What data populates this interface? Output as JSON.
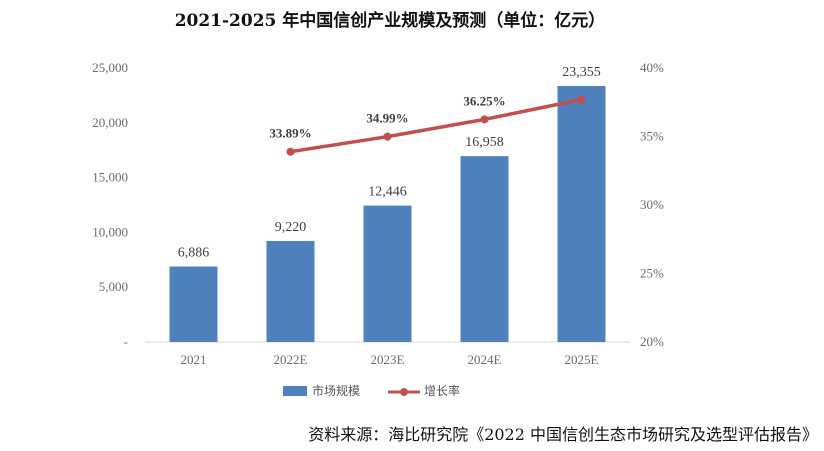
{
  "title": "2021-2025 年中国信创产业规模及预测（单位：亿元）",
  "source": "资料来源：海比研究院《2022 中国信创生态市场研究及选型评估报告》",
  "chart_data": {
    "type": "bar",
    "title": "2021-2025 年中国信创产业规模及预测（单位：亿元）",
    "categories": [
      "2021",
      "2022E",
      "2023E",
      "2024E",
      "2025E"
    ],
    "series": [
      {
        "name": "市场规模",
        "type": "bar",
        "axis": "left",
        "color": "#4f81bd",
        "values": [
          6886,
          9220,
          12446,
          16958,
          23355
        ],
        "labels": [
          "6,886",
          "9,220",
          "12,446",
          "16,958",
          "23,355"
        ]
      },
      {
        "name": "增长率",
        "type": "line",
        "axis": "right",
        "color": "#c0504d",
        "values": [
          null,
          33.89,
          34.99,
          36.25,
          37.7
        ],
        "labels": [
          "",
          "33.89%",
          "34.99%",
          "36.25%",
          ""
        ]
      }
    ],
    "y_left": {
      "ylim": [
        0,
        25000
      ],
      "ticks": [
        0,
        5000,
        10000,
        15000,
        20000,
        25000
      ],
      "tick_labels": [
        "-",
        "5,000",
        "10,000",
        "15,000",
        "20,000",
        "25,000"
      ]
    },
    "y_right": {
      "ylim": [
        20,
        40
      ],
      "ticks": [
        20,
        25,
        30,
        35,
        40
      ],
      "tick_labels": [
        "20%",
        "25%",
        "30%",
        "35%",
        "40%"
      ]
    },
    "grid": false,
    "legend_position": "bottom-center"
  }
}
